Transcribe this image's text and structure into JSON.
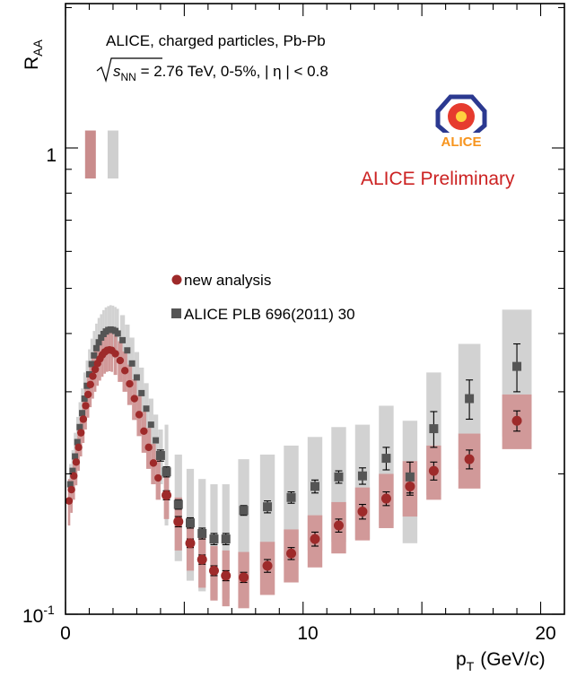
{
  "header": {
    "line1": "ALICE, charged particles, Pb-Pb",
    "energy_symbol": "s",
    "energy_subscript": "NN",
    "energy_rest": " = 2.76 TeV, 0-5%, | η | < 0.8"
  },
  "logo": {
    "text": "ALICE",
    "colors": {
      "ring": "#2b3990",
      "burst": "#e63b2e",
      "text": "#f7941d"
    }
  },
  "preliminary_label": "ALICE Preliminary",
  "chart_data": {
    "type": "scatter",
    "xlabel_main": "p",
    "xlabel_sub": "T",
    "xlabel_unit": "(GeV/c)",
    "ylabel_main": "R",
    "ylabel_sub": "AA",
    "xlim": [
      0,
      21
    ],
    "ylim": [
      0.1,
      2.04
    ],
    "y_scale": "log",
    "x_ticks": [
      0,
      10,
      20
    ],
    "y_tick_labels": [
      {
        "value": 1,
        "base": "1",
        "exp": ""
      },
      {
        "value": 0.1,
        "base": "10",
        "exp": "-1"
      }
    ],
    "norm_boxes": [
      {
        "x": 1.05,
        "y_low": 0.86,
        "y_high": 1.09,
        "color": "#c98c8c"
      },
      {
        "x": 2.0,
        "y_low": 0.86,
        "y_high": 1.09,
        "color": "#cfcfcf"
      }
    ],
    "colors": {
      "new_marker": "#9e2a2a",
      "new_band": "#d19999",
      "old_marker": "#555555",
      "old_band": "#d2d2d2"
    },
    "series": [
      {
        "name": "new analysis",
        "marker": "circle",
        "x": [
          0.15,
          0.25,
          0.35,
          0.45,
          0.55,
          0.65,
          0.75,
          0.85,
          0.95,
          1.05,
          1.15,
          1.25,
          1.35,
          1.45,
          1.55,
          1.65,
          1.75,
          1.85,
          1.95,
          2.1,
          2.3,
          2.5,
          2.7,
          2.9,
          3.1,
          3.3,
          3.5,
          3.7,
          3.9,
          4.25,
          4.75,
          5.25,
          5.75,
          6.25,
          6.75,
          7.5,
          8.5,
          9.5,
          10.5,
          11.5,
          12.5,
          13.5,
          14.5,
          15.5,
          17.0,
          19.0
        ],
        "y": [
          0.175,
          0.185,
          0.198,
          0.212,
          0.228,
          0.245,
          0.262,
          0.28,
          0.296,
          0.311,
          0.324,
          0.335,
          0.345,
          0.353,
          0.36,
          0.365,
          0.368,
          0.369,
          0.368,
          0.362,
          0.35,
          0.333,
          0.312,
          0.29,
          0.268,
          0.247,
          0.228,
          0.211,
          0.196,
          0.18,
          0.158,
          0.142,
          0.131,
          0.124,
          0.121,
          0.12,
          0.127,
          0.135,
          0.145,
          0.155,
          0.166,
          0.177,
          0.188,
          0.203,
          0.215,
          0.26
        ],
        "err": [
          0.008,
          0.008,
          0.008,
          0.008,
          0.008,
          0.008,
          0.008,
          0.008,
          0.008,
          0.008,
          0.008,
          0.008,
          0.008,
          0.008,
          0.008,
          0.008,
          0.008,
          0.008,
          0.008,
          0.008,
          0.008,
          0.008,
          0.008,
          0.008,
          0.008,
          0.008,
          0.008,
          0.008,
          0.008,
          0.004,
          0.004,
          0.003,
          0.003,
          0.003,
          0.003,
          0.003,
          0.004,
          0.004,
          0.005,
          0.005,
          0.006,
          0.006,
          0.008,
          0.009,
          0.01,
          0.013
        ],
        "sys_low": [
          0.155,
          0.165,
          0.176,
          0.189,
          0.203,
          0.218,
          0.233,
          0.249,
          0.264,
          0.278,
          0.29,
          0.3,
          0.309,
          0.317,
          0.323,
          0.328,
          0.331,
          0.332,
          0.331,
          0.326,
          0.315,
          0.3,
          0.281,
          0.261,
          0.241,
          0.222,
          0.205,
          0.19,
          0.176,
          0.16,
          0.137,
          0.124,
          0.114,
          0.107,
          0.104,
          0.103,
          0.11,
          0.117,
          0.126,
          0.135,
          0.144,
          0.153,
          0.162,
          0.176,
          0.186,
          0.226
        ],
        "sys_high": [
          0.195,
          0.206,
          0.22,
          0.235,
          0.253,
          0.272,
          0.291,
          0.311,
          0.328,
          0.344,
          0.358,
          0.37,
          0.381,
          0.389,
          0.397,
          0.402,
          0.405,
          0.406,
          0.405,
          0.398,
          0.385,
          0.366,
          0.343,
          0.319,
          0.295,
          0.272,
          0.251,
          0.232,
          0.216,
          0.2,
          0.178,
          0.16,
          0.147,
          0.14,
          0.137,
          0.136,
          0.143,
          0.152,
          0.163,
          0.174,
          0.187,
          0.2,
          0.213,
          0.23,
          0.244,
          0.296
        ]
      },
      {
        "name": "ALICE PLB 696(2011) 30",
        "marker": "square",
        "x": [
          0.2,
          0.3,
          0.4,
          0.5,
          0.6,
          0.7,
          0.8,
          0.9,
          1.0,
          1.1,
          1.2,
          1.3,
          1.4,
          1.5,
          1.6,
          1.7,
          1.8,
          1.9,
          2.0,
          2.1,
          2.2,
          2.4,
          2.6,
          2.8,
          3.0,
          3.2,
          3.4,
          3.6,
          3.8,
          4.0,
          4.25,
          4.75,
          5.25,
          5.75,
          6.25,
          6.75,
          7.5,
          8.5,
          9.5,
          10.5,
          11.5,
          12.5,
          13.5,
          14.5,
          15.5,
          17.0,
          19.0
        ],
        "y": [
          0.19,
          0.203,
          0.218,
          0.234,
          0.252,
          0.27,
          0.29,
          0.309,
          0.327,
          0.344,
          0.359,
          0.372,
          0.383,
          0.392,
          0.399,
          0.404,
          0.407,
          0.408,
          0.407,
          0.405,
          0.4,
          0.387,
          0.368,
          0.345,
          0.322,
          0.298,
          0.276,
          0.255,
          0.236,
          0.219,
          0.202,
          0.172,
          0.157,
          0.149,
          0.145,
          0.145,
          0.167,
          0.17,
          0.178,
          0.188,
          0.197,
          0.198,
          0.216,
          0.197,
          0.25,
          0.29,
          0.34
        ],
        "err": [
          0.01,
          0.01,
          0.01,
          0.01,
          0.01,
          0.01,
          0.01,
          0.01,
          0.01,
          0.01,
          0.01,
          0.01,
          0.01,
          0.01,
          0.01,
          0.01,
          0.01,
          0.01,
          0.01,
          0.01,
          0.01,
          0.008,
          0.008,
          0.008,
          0.008,
          0.008,
          0.008,
          0.008,
          0.008,
          0.006,
          0.005,
          0.004,
          0.004,
          0.004,
          0.004,
          0.004,
          0.004,
          0.005,
          0.005,
          0.006,
          0.006,
          0.008,
          0.012,
          0.015,
          0.022,
          0.028,
          0.04
        ],
        "sys_low": [
          0.17,
          0.18,
          0.19,
          0.205,
          0.22,
          0.235,
          0.25,
          0.27,
          0.285,
          0.3,
          0.315,
          0.325,
          0.335,
          0.342,
          0.348,
          0.352,
          0.354,
          0.355,
          0.354,
          0.352,
          0.348,
          0.337,
          0.32,
          0.3,
          0.28,
          0.26,
          0.24,
          0.222,
          0.205,
          0.19,
          0.155,
          0.13,
          0.118,
          0.112,
          0.108,
          0.108,
          0.122,
          0.124,
          0.13,
          0.137,
          0.143,
          0.145,
          0.155,
          0.142,
          0.18,
          0.205,
          0.24
        ],
        "sys_high": [
          0.21,
          0.225,
          0.245,
          0.265,
          0.285,
          0.305,
          0.33,
          0.35,
          0.37,
          0.39,
          0.405,
          0.42,
          0.432,
          0.44,
          0.449,
          0.455,
          0.458,
          0.46,
          0.459,
          0.456,
          0.452,
          0.438,
          0.418,
          0.392,
          0.365,
          0.338,
          0.313,
          0.29,
          0.268,
          0.249,
          0.255,
          0.22,
          0.205,
          0.195,
          0.19,
          0.19,
          0.215,
          0.22,
          0.23,
          0.24,
          0.252,
          0.255,
          0.28,
          0.26,
          0.33,
          0.38,
          0.45
        ]
      }
    ]
  }
}
